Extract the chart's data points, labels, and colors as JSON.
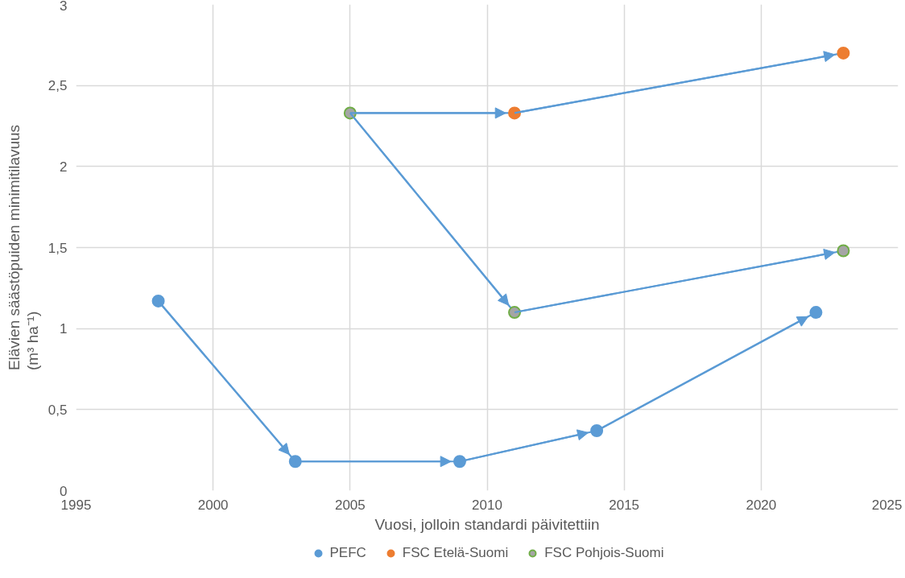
{
  "chart_data": {
    "type": "scatter",
    "xlabel": "Vuosi, jolloin standardi päivitettiin",
    "ylabel": "Elävien säästöpuiden minimitilavuus\n(m³ ha⁻¹)",
    "xlim": [
      1995,
      2025
    ],
    "xticks": [
      1995,
      2000,
      2005,
      2010,
      2015,
      2020,
      2025
    ],
    "ylim": [
      0,
      3
    ],
    "yticks": [
      0,
      {
        "value": 0.5,
        "label": "0,5"
      },
      1,
      {
        "value": 1.5,
        "label": "1,5"
      },
      2,
      {
        "value": 2.5,
        "label": "2,5"
      },
      3
    ],
    "grid": true,
    "legend": "bottom",
    "marker": "circle",
    "series": [
      {
        "type": "line",
        "marker": "none",
        "color": "#5b9bd5",
        "x": [
          1998,
          2003,
          2009,
          2014,
          2022
        ],
        "values": [
          1.17,
          0.18,
          0.18,
          0.37,
          1.1
        ]
      },
      {
        "type": "line",
        "marker": "none",
        "color": "#5b9bd5",
        "x": [
          2005,
          2011,
          2023
        ],
        "values": [
          2.33,
          2.33,
          2.7
        ]
      },
      {
        "type": "line",
        "marker": "none",
        "color": "#5b9bd5",
        "x": [
          2005,
          2011,
          2023
        ],
        "values": [
          2.33,
          1.1,
          1.48
        ]
      },
      {
        "name": "PEFC",
        "color": "#5b9bd5",
        "x": [
          1998,
          2003,
          2009,
          2014,
          2022
        ],
        "values": [
          1.17,
          0.18,
          0.18,
          0.37,
          1.1
        ]
      },
      {
        "name": "FSC Etelä-Suomi",
        "color": "#ed7d31",
        "x": [
          2011,
          2023
        ],
        "values": [
          2.33,
          2.7
        ]
      },
      {
        "name": "FSC Pohjois-Suomi",
        "color": "#a5a5a5",
        "x": [
          2005,
          2011,
          2023
        ],
        "values": [
          2.33,
          1.1,
          1.48
        ]
      }
    ]
  }
}
